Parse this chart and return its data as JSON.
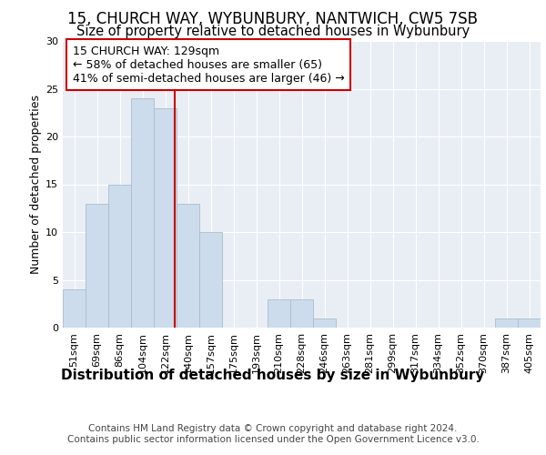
{
  "title1": "15, CHURCH WAY, WYBUNBURY, NANTWICH, CW5 7SB",
  "title2": "Size of property relative to detached houses in Wybunbury",
  "xlabel": "Distribution of detached houses by size in Wybunbury",
  "ylabel": "Number of detached properties",
  "bin_labels": [
    "51sqm",
    "69sqm",
    "86sqm",
    "104sqm",
    "122sqm",
    "140sqm",
    "157sqm",
    "175sqm",
    "193sqm",
    "210sqm",
    "228sqm",
    "246sqm",
    "263sqm",
    "281sqm",
    "299sqm",
    "317sqm",
    "334sqm",
    "352sqm",
    "370sqm",
    "387sqm",
    "405sqm"
  ],
  "bar_heights": [
    4,
    13,
    15,
    24,
    23,
    13,
    10,
    0,
    0,
    3,
    3,
    1,
    0,
    0,
    0,
    0,
    0,
    0,
    0,
    1,
    1
  ],
  "bar_color": "#ccdcec",
  "bar_edge_color": "#aabccc",
  "vline_x_index": 4.425,
  "annotation_text": "15 CHURCH WAY: 129sqm\n← 58% of detached houses are smaller (65)\n41% of semi-detached houses are larger (46) →",
  "annotation_box_color": "#ffffff",
  "annotation_box_edge": "#cc0000",
  "vline_color": "#cc0000",
  "ylim": [
    0,
    30
  ],
  "yticks": [
    0,
    5,
    10,
    15,
    20,
    25,
    30
  ],
  "background_color": "#e8eef4",
  "grid_color": "#ffffff",
  "footer_text": "Contains HM Land Registry data © Crown copyright and database right 2024.\nContains public sector information licensed under the Open Government Licence v3.0.",
  "title1_fontsize": 12,
  "title2_fontsize": 10.5,
  "xlabel_fontsize": 11,
  "ylabel_fontsize": 9,
  "tick_fontsize": 8,
  "annotation_fontsize": 9,
  "footer_fontsize": 7.5
}
